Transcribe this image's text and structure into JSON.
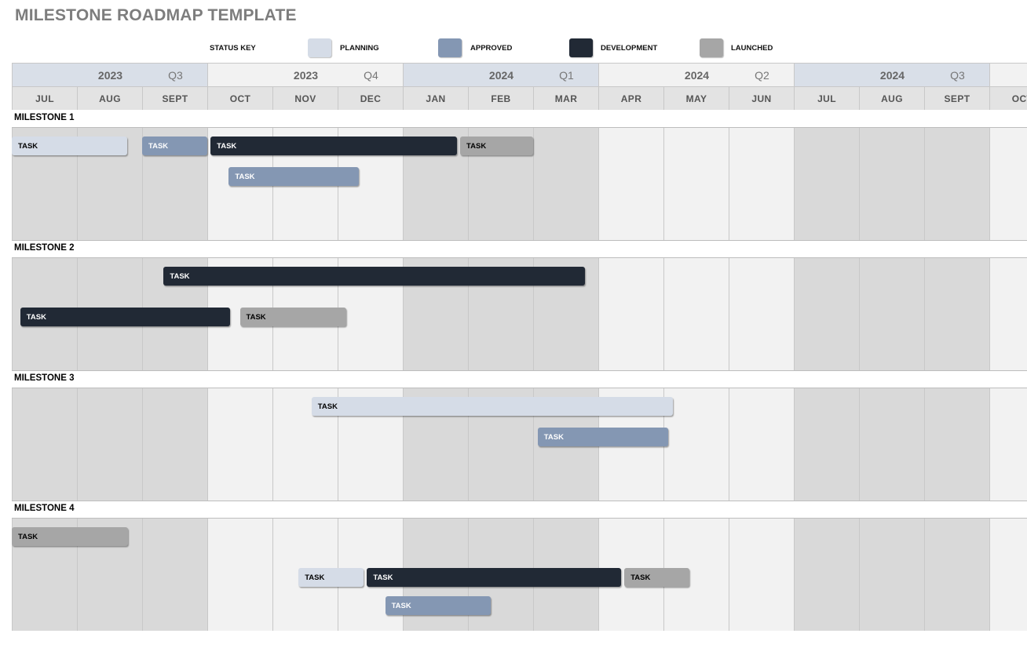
{
  "title": "MILESTONE ROADMAP TEMPLATE",
  "status_key": {
    "label": "STATUS KEY",
    "items": [
      {
        "id": "planning",
        "label": "PLANNING",
        "color": "#d5dce7"
      },
      {
        "id": "approved",
        "label": "APPROVED",
        "color": "#8497b3"
      },
      {
        "id": "development",
        "label": "DEVELOPMENT",
        "color": "#212935"
      },
      {
        "id": "launched",
        "label": "LAUNCHED",
        "color": "#a6a6a6"
      }
    ]
  },
  "quarters": [
    {
      "year": "2023",
      "quarter": "Q3",
      "color": "#d9dfe8"
    },
    {
      "year": "2023",
      "quarter": "Q4",
      "color": "#f2f2f2"
    },
    {
      "year": "2024",
      "quarter": "Q1",
      "color": "#d9dfe8"
    },
    {
      "year": "2024",
      "quarter": "Q2",
      "color": "#f2f2f2"
    },
    {
      "year": "2024",
      "quarter": "Q3",
      "color": "#d9dfe8"
    },
    {
      "year": "",
      "quarter": "",
      "color": "#f2f2f2"
    }
  ],
  "months": [
    "JUL",
    "AUG",
    "SEPT",
    "OCT",
    "NOV",
    "DEC",
    "JAN",
    "FEB",
    "MAR",
    "APR",
    "MAY",
    "JUN",
    "JUL",
    "AUG",
    "SEPT",
    "OCT"
  ],
  "column_shades": [
    "#d9d9d9",
    "#f2f2f2"
  ],
  "milestones": [
    {
      "label": "MILESTONE 1",
      "tasks": [
        {
          "label": "TASK",
          "status": "planning",
          "start": 0.0,
          "end": 1.77,
          "lane": 0
        },
        {
          "label": "TASK",
          "status": "approved",
          "start": 2.0,
          "end": 3.0,
          "lane": 0
        },
        {
          "label": "TASK",
          "status": "development",
          "start": 3.05,
          "end": 6.83,
          "lane": 0
        },
        {
          "label": "TASK",
          "status": "launched",
          "start": 6.88,
          "end": 8.0,
          "lane": 0
        },
        {
          "label": "TASK",
          "status": "approved",
          "start": 3.33,
          "end": 5.33,
          "lane": 1
        }
      ]
    },
    {
      "label": "MILESTONE 2",
      "tasks": [
        {
          "label": "TASK",
          "status": "development",
          "start": 2.33,
          "end": 8.8,
          "lane": 0
        },
        {
          "label": "TASK",
          "status": "development",
          "start": 0.13,
          "end": 3.35,
          "lane": 2
        },
        {
          "label": "TASK",
          "status": "launched",
          "start": 3.5,
          "end": 5.13,
          "lane": 2
        }
      ]
    },
    {
      "label": "MILESTONE 3",
      "tasks": [
        {
          "label": "TASK",
          "status": "planning",
          "start": 4.6,
          "end": 10.15,
          "lane": 0
        },
        {
          "label": "TASK",
          "status": "approved",
          "start": 8.07,
          "end": 10.07,
          "lane": 1
        }
      ]
    },
    {
      "label": "MILESTONE 4",
      "tasks": [
        {
          "label": "TASK",
          "status": "launched",
          "start": 0.0,
          "end": 1.78,
          "lane": 0
        },
        {
          "label": "TASK",
          "status": "planning",
          "start": 4.4,
          "end": 5.4,
          "lane": 2
        },
        {
          "label": "TASK",
          "status": "development",
          "start": 5.45,
          "end": 9.35,
          "lane": 2
        },
        {
          "label": "TASK",
          "status": "launched",
          "start": 9.4,
          "end": 10.4,
          "lane": 2
        },
        {
          "label": "TASK",
          "status": "approved",
          "start": 5.73,
          "end": 7.35,
          "lane": 3
        }
      ]
    }
  ]
}
